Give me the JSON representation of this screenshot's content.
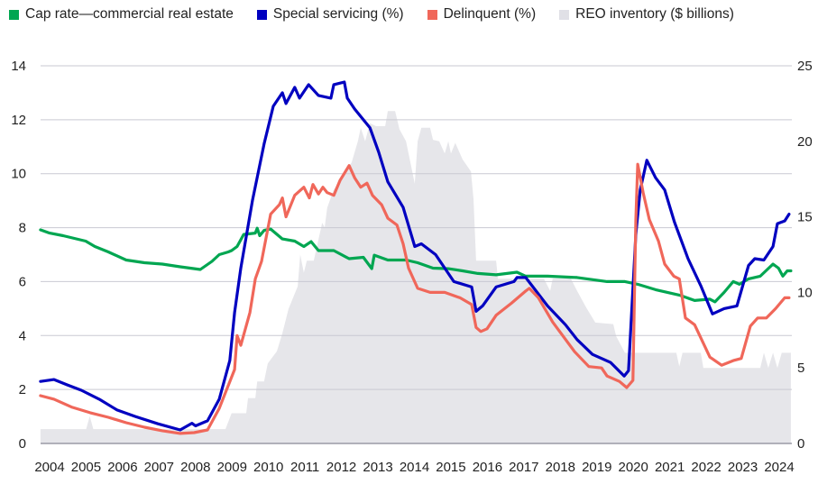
{
  "chart_data": {
    "type": "line",
    "title": "",
    "xlabel": "",
    "ylabel": "",
    "y2label": "",
    "xlim": [
      2003.75,
      2024.35
    ],
    "ylim": [
      0,
      14
    ],
    "y2lim": [
      0,
      25
    ],
    "grid": true,
    "legend_position": "top",
    "x_ticks": [
      "2004",
      "2005",
      "2006",
      "2007",
      "2008",
      "2009",
      "2010",
      "2011",
      "2012",
      "2013",
      "2014",
      "2015",
      "2016",
      "2017",
      "2018",
      "2019",
      "2020",
      "2021",
      "2022",
      "2023",
      "2024"
    ],
    "y_ticks": [
      "0",
      "2",
      "4",
      "6",
      "8",
      "10",
      "12",
      "14"
    ],
    "y2_ticks": [
      "0",
      "5",
      "10",
      "15",
      "20",
      "25"
    ],
    "series": [
      {
        "name": "Cap rate—commercial real estate",
        "axis": "left",
        "kind": "line",
        "color": "#00a651",
        "points": [
          [
            2003.75,
            7.92
          ],
          [
            2004.0,
            7.8
          ],
          [
            2004.37,
            7.7
          ],
          [
            2004.99,
            7.5
          ],
          [
            2005.24,
            7.3
          ],
          [
            2005.61,
            7.1
          ],
          [
            2006.1,
            6.8
          ],
          [
            2006.6,
            6.7
          ],
          [
            2007.09,
            6.65
          ],
          [
            2007.58,
            6.55
          ],
          [
            2008.13,
            6.45
          ],
          [
            2008.45,
            6.75
          ],
          [
            2008.65,
            7.0
          ],
          [
            2008.9,
            7.1
          ],
          [
            2008.99,
            7.15
          ],
          [
            2009.14,
            7.3
          ],
          [
            2009.32,
            7.75
          ],
          [
            2009.64,
            7.8
          ],
          [
            2009.69,
            7.98
          ],
          [
            2009.76,
            7.7
          ],
          [
            2009.88,
            7.9
          ],
          [
            2010.06,
            7.95
          ],
          [
            2010.38,
            7.58
          ],
          [
            2010.72,
            7.5
          ],
          [
            2010.97,
            7.3
          ],
          [
            2011.17,
            7.48
          ],
          [
            2011.37,
            7.15
          ],
          [
            2011.79,
            7.15
          ],
          [
            2012.21,
            6.85
          ],
          [
            2012.6,
            6.9
          ],
          [
            2012.83,
            6.48
          ],
          [
            2012.9,
            6.98
          ],
          [
            2013.27,
            6.8
          ],
          [
            2013.77,
            6.8
          ],
          [
            2014.09,
            6.7
          ],
          [
            2014.51,
            6.5
          ],
          [
            2014.93,
            6.48
          ],
          [
            2015.32,
            6.4
          ],
          [
            2015.74,
            6.3
          ],
          [
            2016.24,
            6.25
          ],
          [
            2016.81,
            6.35
          ],
          [
            2017.05,
            6.2
          ],
          [
            2017.65,
            6.2
          ],
          [
            2018.46,
            6.15
          ],
          [
            2019.28,
            6.0
          ],
          [
            2019.77,
            6.0
          ],
          [
            2020.12,
            5.9
          ],
          [
            2020.61,
            5.7
          ],
          [
            2021.26,
            5.5
          ],
          [
            2021.68,
            5.3
          ],
          [
            2022.1,
            5.35
          ],
          [
            2022.24,
            5.25
          ],
          [
            2022.49,
            5.6
          ],
          [
            2022.74,
            6.0
          ],
          [
            2022.91,
            5.9
          ],
          [
            2023.16,
            6.1
          ],
          [
            2023.48,
            6.2
          ],
          [
            2023.83,
            6.65
          ],
          [
            2023.98,
            6.5
          ],
          [
            2024.1,
            6.2
          ],
          [
            2024.22,
            6.4
          ],
          [
            2024.32,
            6.4
          ]
        ]
      },
      {
        "name": "Special servicing (%)",
        "axis": "left",
        "kind": "line",
        "color": "#0000c0",
        "points": [
          [
            2003.75,
            2.3
          ],
          [
            2004.12,
            2.37
          ],
          [
            2004.49,
            2.17
          ],
          [
            2004.87,
            1.97
          ],
          [
            2005.36,
            1.64
          ],
          [
            2005.85,
            1.24
          ],
          [
            2006.35,
            1.0
          ],
          [
            2006.97,
            0.73
          ],
          [
            2007.58,
            0.5
          ],
          [
            2007.9,
            0.75
          ],
          [
            2008.0,
            0.65
          ],
          [
            2008.33,
            0.84
          ],
          [
            2008.65,
            1.64
          ],
          [
            2008.94,
            3.07
          ],
          [
            2009.07,
            4.85
          ],
          [
            2009.24,
            6.5
          ],
          [
            2009.56,
            9.0
          ],
          [
            2009.88,
            11.1
          ],
          [
            2010.13,
            12.5
          ],
          [
            2010.38,
            13.0
          ],
          [
            2010.48,
            12.6
          ],
          [
            2010.72,
            13.2
          ],
          [
            2010.85,
            12.8
          ],
          [
            2011.1,
            13.3
          ],
          [
            2011.37,
            12.9
          ],
          [
            2011.71,
            12.8
          ],
          [
            2011.79,
            13.3
          ],
          [
            2012.08,
            13.4
          ],
          [
            2012.16,
            12.8
          ],
          [
            2012.36,
            12.4
          ],
          [
            2012.78,
            11.7
          ],
          [
            2013.02,
            10.8
          ],
          [
            2013.27,
            9.7
          ],
          [
            2013.69,
            8.75
          ],
          [
            2014.01,
            7.3
          ],
          [
            2014.19,
            7.4
          ],
          [
            2014.58,
            7.0
          ],
          [
            2015.08,
            6.0
          ],
          [
            2015.57,
            5.8
          ],
          [
            2015.69,
            4.9
          ],
          [
            2015.87,
            5.1
          ],
          [
            2016.24,
            5.8
          ],
          [
            2016.73,
            6.0
          ],
          [
            2016.81,
            6.15
          ],
          [
            2017.05,
            6.15
          ],
          [
            2017.65,
            5.1
          ],
          [
            2018.14,
            4.4
          ],
          [
            2018.46,
            3.85
          ],
          [
            2018.88,
            3.3
          ],
          [
            2019.38,
            3.0
          ],
          [
            2019.75,
            2.5
          ],
          [
            2019.87,
            2.7
          ],
          [
            2020.07,
            7.75
          ],
          [
            2020.19,
            9.4
          ],
          [
            2020.37,
            10.5
          ],
          [
            2020.61,
            9.85
          ],
          [
            2020.86,
            9.4
          ],
          [
            2021.13,
            8.2
          ],
          [
            2021.5,
            6.85
          ],
          [
            2021.85,
            5.85
          ],
          [
            2022.17,
            4.8
          ],
          [
            2022.49,
            5.0
          ],
          [
            2022.84,
            5.1
          ],
          [
            2023.16,
            6.6
          ],
          [
            2023.33,
            6.85
          ],
          [
            2023.58,
            6.8
          ],
          [
            2023.83,
            7.3
          ],
          [
            2023.95,
            8.15
          ],
          [
            2024.15,
            8.25
          ],
          [
            2024.27,
            8.5
          ]
        ]
      },
      {
        "name": "Delinquent (%)",
        "axis": "left",
        "kind": "line",
        "color": "#f0675a",
        "points": [
          [
            2003.75,
            1.77
          ],
          [
            2004.12,
            1.64
          ],
          [
            2004.62,
            1.34
          ],
          [
            2005.11,
            1.14
          ],
          [
            2005.61,
            0.97
          ],
          [
            2006.1,
            0.77
          ],
          [
            2006.6,
            0.6
          ],
          [
            2007.09,
            0.47
          ],
          [
            2007.58,
            0.37
          ],
          [
            2007.96,
            0.4
          ],
          [
            2008.33,
            0.5
          ],
          [
            2008.65,
            1.3
          ],
          [
            2009.07,
            2.74
          ],
          [
            2009.14,
            4.0
          ],
          [
            2009.24,
            3.64
          ],
          [
            2009.49,
            4.85
          ],
          [
            2009.64,
            6.1
          ],
          [
            2009.81,
            6.75
          ],
          [
            2010.06,
            8.5
          ],
          [
            2010.3,
            8.85
          ],
          [
            2010.38,
            9.1
          ],
          [
            2010.48,
            8.4
          ],
          [
            2010.72,
            9.2
          ],
          [
            2010.97,
            9.5
          ],
          [
            2011.12,
            9.1
          ],
          [
            2011.22,
            9.6
          ],
          [
            2011.37,
            9.25
          ],
          [
            2011.49,
            9.5
          ],
          [
            2011.61,
            9.3
          ],
          [
            2011.79,
            9.2
          ],
          [
            2011.96,
            9.75
          ],
          [
            2012.21,
            10.3
          ],
          [
            2012.36,
            9.85
          ],
          [
            2012.53,
            9.5
          ],
          [
            2012.7,
            9.65
          ],
          [
            2012.85,
            9.2
          ],
          [
            2013.1,
            8.85
          ],
          [
            2013.27,
            8.35
          ],
          [
            2013.52,
            8.1
          ],
          [
            2013.69,
            7.4
          ],
          [
            2013.84,
            6.5
          ],
          [
            2014.09,
            5.75
          ],
          [
            2014.43,
            5.6
          ],
          [
            2014.83,
            5.6
          ],
          [
            2015.25,
            5.4
          ],
          [
            2015.57,
            5.15
          ],
          [
            2015.69,
            4.3
          ],
          [
            2015.82,
            4.15
          ],
          [
            2015.99,
            4.25
          ],
          [
            2016.24,
            4.75
          ],
          [
            2016.66,
            5.2
          ],
          [
            2017.05,
            5.65
          ],
          [
            2017.15,
            5.75
          ],
          [
            2017.4,
            5.4
          ],
          [
            2017.79,
            4.5
          ],
          [
            2018.39,
            3.4
          ],
          [
            2018.78,
            2.85
          ],
          [
            2019.13,
            2.8
          ],
          [
            2019.28,
            2.5
          ],
          [
            2019.62,
            2.3
          ],
          [
            2019.82,
            2.07
          ],
          [
            2019.99,
            2.34
          ],
          [
            2020.07,
            8.3
          ],
          [
            2020.12,
            10.35
          ],
          [
            2020.27,
            9.3
          ],
          [
            2020.44,
            8.3
          ],
          [
            2020.69,
            7.5
          ],
          [
            2020.86,
            6.65
          ],
          [
            2021.11,
            6.2
          ],
          [
            2021.26,
            6.1
          ],
          [
            2021.43,
            4.65
          ],
          [
            2021.68,
            4.4
          ],
          [
            2022.1,
            3.2
          ],
          [
            2022.42,
            2.9
          ],
          [
            2022.74,
            3.07
          ],
          [
            2022.96,
            3.15
          ],
          [
            2023.21,
            4.35
          ],
          [
            2023.41,
            4.65
          ],
          [
            2023.65,
            4.65
          ],
          [
            2023.9,
            5.0
          ],
          [
            2024.15,
            5.4
          ],
          [
            2024.27,
            5.4
          ]
        ]
      },
      {
        "name": "REO inventory ($ billions)",
        "axis": "right",
        "kind": "area",
        "color": "#e6e6ea",
        "points": [
          [
            2003.75,
            0.95
          ],
          [
            2005.0,
            0.95
          ],
          [
            2005.1,
            1.8
          ],
          [
            2005.2,
            0.95
          ],
          [
            2008.82,
            0.95
          ],
          [
            2008.99,
            2.0
          ],
          [
            2009.39,
            2.0
          ],
          [
            2009.44,
            3.0
          ],
          [
            2009.64,
            3.0
          ],
          [
            2009.69,
            4.1
          ],
          [
            2009.88,
            4.1
          ],
          [
            2009.98,
            5.3
          ],
          [
            2010.23,
            6.1
          ],
          [
            2010.38,
            7.3
          ],
          [
            2010.55,
            8.9
          ],
          [
            2010.8,
            10.4
          ],
          [
            2010.87,
            12.5
          ],
          [
            2010.97,
            11.3
          ],
          [
            2011.05,
            12.1
          ],
          [
            2011.24,
            12.1
          ],
          [
            2011.47,
            14.6
          ],
          [
            2011.54,
            14.3
          ],
          [
            2011.61,
            15.6
          ],
          [
            2011.79,
            16.8
          ],
          [
            2011.96,
            17.4
          ],
          [
            2012.28,
            18.6
          ],
          [
            2012.45,
            20.0
          ],
          [
            2012.53,
            20.9
          ],
          [
            2012.65,
            20.0
          ],
          [
            2012.78,
            21.2
          ],
          [
            2012.95,
            21.0
          ],
          [
            2013.2,
            21.0
          ],
          [
            2013.27,
            22.0
          ],
          [
            2013.47,
            22.0
          ],
          [
            2013.59,
            20.8
          ],
          [
            2013.77,
            20.0
          ],
          [
            2013.94,
            18.0
          ],
          [
            2014.01,
            17.2
          ],
          [
            2014.09,
            20.0
          ],
          [
            2014.19,
            20.9
          ],
          [
            2014.43,
            20.9
          ],
          [
            2014.51,
            20.1
          ],
          [
            2014.68,
            20.0
          ],
          [
            2014.83,
            19.2
          ],
          [
            2014.93,
            20.0
          ],
          [
            2015.0,
            19.2
          ],
          [
            2015.12,
            19.9
          ],
          [
            2015.32,
            18.8
          ],
          [
            2015.55,
            18.0
          ],
          [
            2015.62,
            16.2
          ],
          [
            2015.69,
            12.1
          ],
          [
            2016.24,
            12.1
          ],
          [
            2016.29,
            10.9
          ],
          [
            2017.55,
            10.9
          ],
          [
            2017.72,
            10.1
          ],
          [
            2017.79,
            10.9
          ],
          [
            2018.29,
            10.9
          ],
          [
            2018.46,
            10.1
          ],
          [
            2018.71,
            9.0
          ],
          [
            2018.96,
            8.0
          ],
          [
            2019.45,
            7.9
          ],
          [
            2019.53,
            7.1
          ],
          [
            2019.77,
            6.0
          ],
          [
            2021.18,
            6.0
          ],
          [
            2021.26,
            5.1
          ],
          [
            2021.35,
            6.0
          ],
          [
            2021.85,
            6.0
          ],
          [
            2021.92,
            5.0
          ],
          [
            2023.48,
            5.0
          ],
          [
            2023.58,
            6.0
          ],
          [
            2023.7,
            5.0
          ],
          [
            2023.83,
            6.0
          ],
          [
            2023.95,
            5.0
          ],
          [
            2024.07,
            6.0
          ],
          [
            2024.32,
            6.0
          ]
        ]
      }
    ]
  }
}
